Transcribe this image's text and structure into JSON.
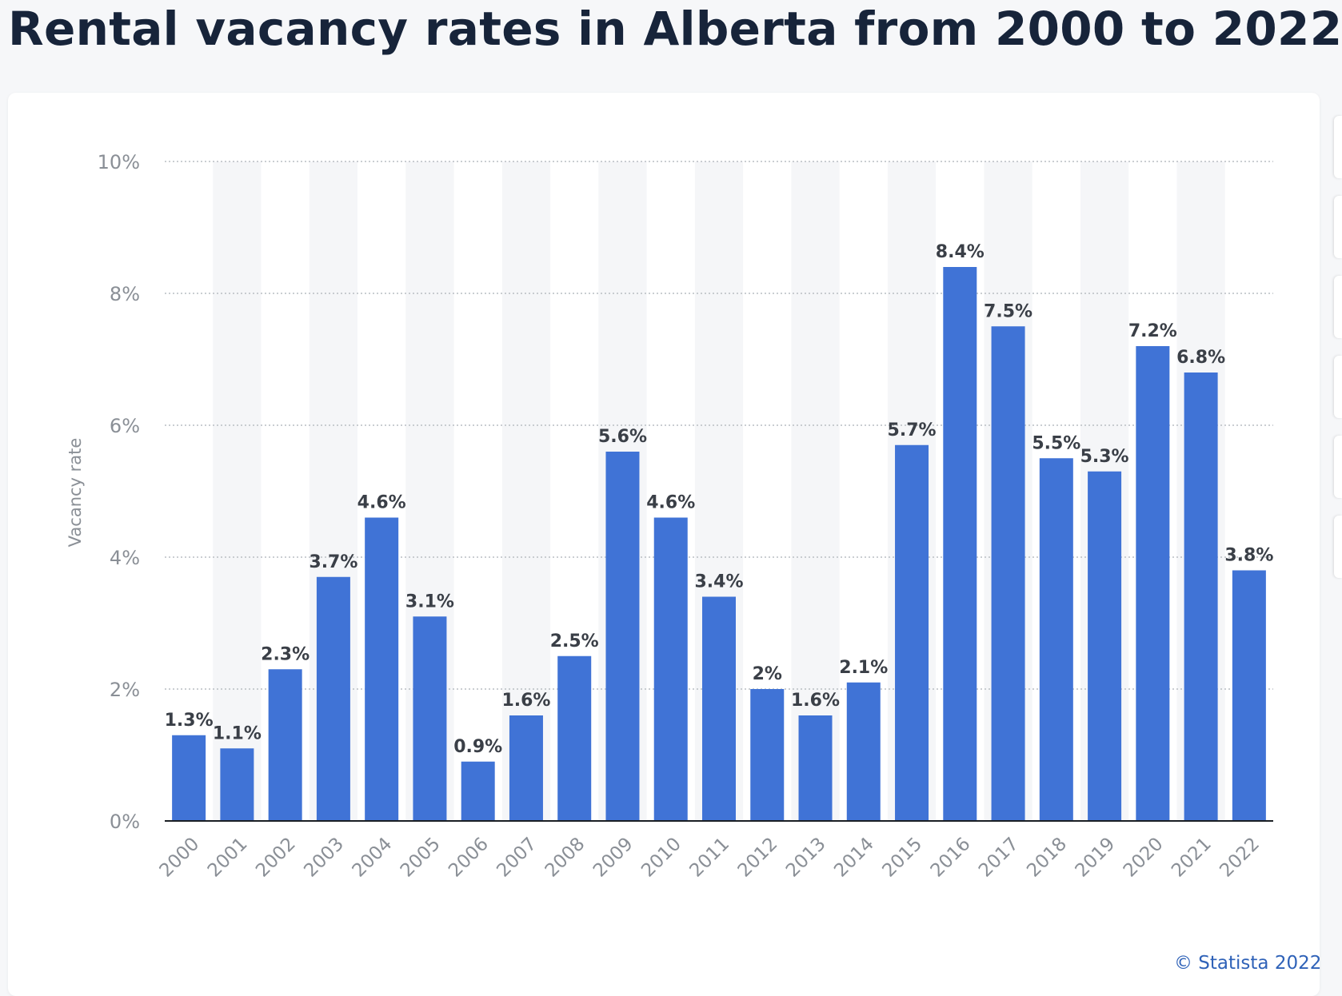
{
  "page": {
    "title": "Rental vacancy rates in Alberta from 2000 to 2022",
    "credit": "© Statista 2022"
  },
  "colors": {
    "bar": "#4073d6",
    "title": "#17243a",
    "label": "#3a3f47",
    "tick": "#8a8f96",
    "band": "#f5f6f8",
    "grid": "#b9bdc3",
    "credit": "#2f62b8"
  },
  "chart_data": {
    "type": "bar",
    "title": "Rental vacancy rates in Alberta from 2000 to 2022",
    "xlabel": "",
    "ylabel": "Vacancy rate",
    "ylim": [
      0,
      10
    ],
    "yticks": [
      0,
      2,
      4,
      6,
      8,
      10
    ],
    "ytick_labels": [
      "0%",
      "2%",
      "4%",
      "6%",
      "8%",
      "10%"
    ],
    "grid": true,
    "legend": "none",
    "categories": [
      "2000",
      "2001",
      "2002",
      "2003",
      "2004",
      "2005",
      "2006",
      "2007",
      "2008",
      "2009",
      "2010",
      "2011",
      "2012",
      "2013",
      "2014",
      "2015",
      "2016",
      "2017",
      "2018",
      "2019",
      "2020",
      "2021",
      "2022"
    ],
    "values": [
      1.3,
      1.1,
      2.3,
      3.7,
      4.6,
      3.1,
      0.9,
      1.6,
      2.5,
      5.6,
      4.6,
      3.4,
      2,
      1.6,
      2.1,
      5.7,
      8.4,
      7.5,
      5.5,
      5.3,
      7.2,
      6.8,
      3.8
    ],
    "data_labels": [
      "1.3%",
      "1.1%",
      "2.3%",
      "3.7%",
      "4.6%",
      "3.1%",
      "0.9%",
      "1.6%",
      "2.5%",
      "5.6%",
      "4.6%",
      "3.4%",
      "2%",
      "1.6%",
      "2.1%",
      "5.7%",
      "8.4%",
      "7.5%",
      "5.5%",
      "5.3%",
      "7.2%",
      "6.8%",
      "3.8%"
    ]
  }
}
